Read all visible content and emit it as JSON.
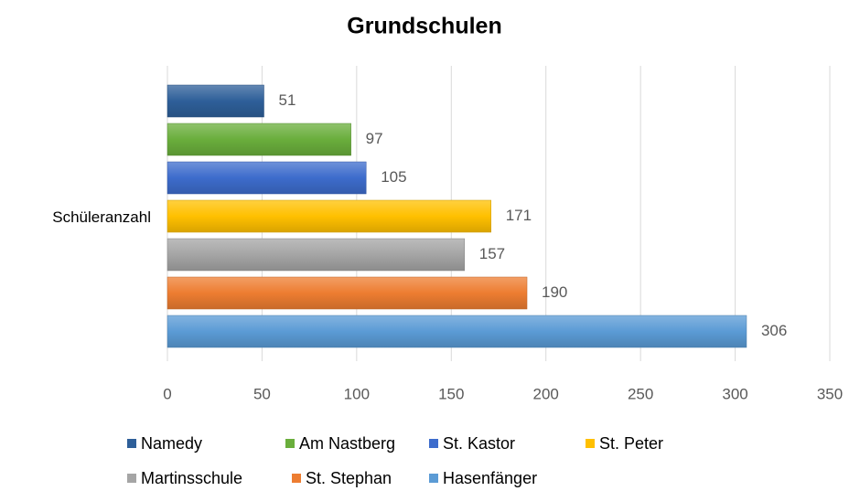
{
  "chart_data": {
    "type": "bar",
    "orientation": "horizontal",
    "title": "Grundschulen",
    "categories": [
      "Schüleranzahl"
    ],
    "series": [
      {
        "name": "Namedy",
        "color": "#2e5f99",
        "values": [
          51
        ]
      },
      {
        "name": "Am Nastberg",
        "color": "#6aae3c",
        "values": [
          97
        ]
      },
      {
        "name": "St. Kastor",
        "color": "#3d6ccc",
        "values": [
          105
        ]
      },
      {
        "name": "St. Peter",
        "color": "#ffc000",
        "values": [
          171
        ]
      },
      {
        "name": "Martinsschule",
        "color": "#a5a5a5",
        "values": [
          157
        ]
      },
      {
        "name": "St. Stephan",
        "color": "#ed7d31",
        "values": [
          190
        ]
      },
      {
        "name": "Hasenfänger",
        "color": "#5b9bd5",
        "values": [
          306
        ]
      }
    ],
    "xlim": [
      0,
      350
    ],
    "xticks": [
      0,
      50,
      100,
      150,
      200,
      250,
      300,
      350
    ],
    "grid": true,
    "legend": "bottom"
  }
}
